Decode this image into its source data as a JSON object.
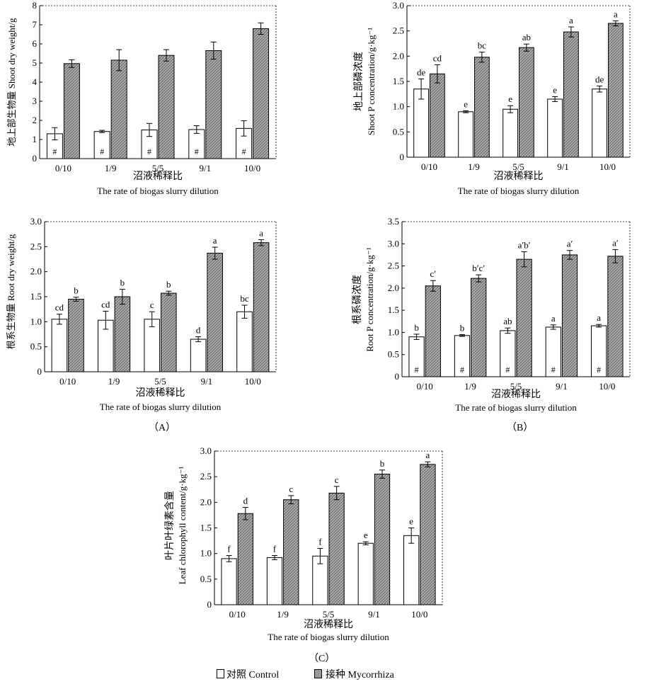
{
  "figure": {
    "panel_labels": [
      "（A）",
      "（B）",
      "（C）"
    ],
    "legend": [
      {
        "label": "对照 Control",
        "color": "#ffffff"
      },
      {
        "label": "接种 Mycorrhiza",
        "color": "#9a9a9a"
      }
    ]
  },
  "chart_data": [
    {
      "type": "bar",
      "panel": "A",
      "ylabel_cn": "地上部生物量 Shoot dry weight/g",
      "ylabel_en": "",
      "xlabel_cn": "沼液稀释比",
      "xlabel_en": "The rate of biogas slurry dilution",
      "categories": [
        "0/10",
        "1/9",
        "5/5",
        "9/1",
        "10/0"
      ],
      "ylim": [
        0,
        8
      ],
      "yticks": [
        "0",
        "1",
        "2",
        "3",
        "4",
        "5",
        "6",
        "7",
        "8"
      ],
      "series": [
        {
          "name": "对照 Control",
          "values": [
            1.3,
            1.42,
            1.5,
            1.52,
            1.58
          ],
          "errors": [
            0.32,
            0.06,
            0.34,
            0.2,
            0.4
          ],
          "labels": [
            "#",
            "#",
            "#",
            "#",
            "#"
          ],
          "label_pos": "inside"
        },
        {
          "name": "接种 Mycorrhiza",
          "values": [
            4.97,
            5.15,
            5.4,
            5.65,
            6.8
          ],
          "errors": [
            0.2,
            0.55,
            0.3,
            0.45,
            0.3
          ],
          "labels": [
            "",
            "",
            "",
            "",
            ""
          ],
          "label_pos": "top"
        }
      ]
    },
    {
      "type": "bar",
      "panel": "B",
      "ylabel_cn": "地上部磷浓度",
      "ylabel_en": "Shoot P concentration/g·kg⁻¹",
      "xlabel_cn": "沼液稀释比",
      "xlabel_en": "The rate of biogas slurry dilution",
      "categories": [
        "0/10",
        "1/9",
        "5/5",
        "9/1",
        "10/0"
      ],
      "ylim": [
        0,
        3.0
      ],
      "yticks": [
        "0",
        "0.5",
        "1.0",
        "1.5",
        "2.0",
        "2.5",
        "3.0"
      ],
      "series": [
        {
          "name": "对照 Control",
          "values": [
            1.35,
            0.9,
            0.95,
            1.15,
            1.35
          ],
          "errors": [
            0.2,
            0.02,
            0.07,
            0.05,
            0.06
          ],
          "labels": [
            "de",
            "e",
            "e",
            "e",
            "de"
          ],
          "label_pos": "top"
        },
        {
          "name": "接种 Mycorrhiza",
          "values": [
            1.65,
            1.98,
            2.17,
            2.48,
            2.65
          ],
          "errors": [
            0.18,
            0.1,
            0.07,
            0.1,
            0.05
          ],
          "labels": [
            "cd",
            "bc",
            "ab",
            "a",
            "a"
          ],
          "label_pos": "top"
        }
      ]
    },
    {
      "type": "bar",
      "panel": "A",
      "ylabel_cn": "根系生物量 Root dry weight/g",
      "ylabel_en": "",
      "xlabel_cn": "沼液稀释比",
      "xlabel_en": "The rate of biogas slurry dilution",
      "categories": [
        "0/10",
        "1/9",
        "5/5",
        "9/1",
        "10/0"
      ],
      "ylim": [
        0,
        3.0
      ],
      "yticks": [
        "0",
        "0.5",
        "1.0",
        "1.5",
        "2.0",
        "2.5",
        "3.0"
      ],
      "series": [
        {
          "name": "对照 Control",
          "values": [
            1.05,
            1.03,
            1.05,
            0.65,
            1.2
          ],
          "errors": [
            0.1,
            0.18,
            0.15,
            0.05,
            0.13
          ],
          "labels": [
            "cd",
            "cd",
            "c",
            "d",
            "bc"
          ],
          "label_pos": "top"
        },
        {
          "name": "接种 Mycorrhiza",
          "values": [
            1.45,
            1.5,
            1.57,
            2.37,
            2.58
          ],
          "errors": [
            0.04,
            0.15,
            0.04,
            0.12,
            0.06
          ],
          "labels": [
            "b",
            "b",
            "b",
            "a",
            "a"
          ],
          "label_pos": "top"
        }
      ]
    },
    {
      "type": "bar",
      "panel": "B",
      "ylabel_cn": "根系磷浓度",
      "ylabel_en": "Root P concentration/g·kg⁻¹",
      "xlabel_cn": "沼液稀释比",
      "xlabel_en": "The rate of biogas slurry dilution",
      "categories": [
        "0/10",
        "1/9",
        "5/5",
        "9/1",
        "10/0"
      ],
      "ylim": [
        0,
        3.5
      ],
      "yticks": [
        "0",
        "0.5",
        "1.0",
        "1.5",
        "2.0",
        "2.5",
        "3.0",
        "3.5"
      ],
      "series": [
        {
          "name": "对照 Control",
          "values": [
            0.9,
            0.93,
            1.04,
            1.12,
            1.15
          ],
          "errors": [
            0.06,
            0.02,
            0.06,
            0.05,
            0.03
          ],
          "labels": [
            "b",
            "b",
            "ab",
            "a",
            "a"
          ],
          "label_pos": "top",
          "inner_labels": [
            "#",
            "#",
            "#",
            "#",
            "#"
          ]
        },
        {
          "name": "接种 Mycorrhiza",
          "values": [
            2.05,
            2.22,
            2.65,
            2.75,
            2.72
          ],
          "errors": [
            0.12,
            0.08,
            0.17,
            0.1,
            0.15
          ],
          "labels": [
            "c′",
            "b′c′",
            "a′b′",
            "a′",
            "a′"
          ],
          "label_pos": "top"
        }
      ]
    },
    {
      "type": "bar",
      "panel": "C",
      "ylabel_cn": "叶片叶绿素含量",
      "ylabel_en": "Leaf chlorophyll content/g·kg⁻¹",
      "xlabel_cn": "沼液稀释比",
      "xlabel_en": "The rate of biogas slurry dilution",
      "categories": [
        "0/10",
        "1/9",
        "5/5",
        "9/1",
        "10/0"
      ],
      "ylim": [
        0,
        3.0
      ],
      "yticks": [
        "0",
        "0.5",
        "1.0",
        "1.5",
        "2.0",
        "2.5",
        "3.0"
      ],
      "series": [
        {
          "name": "对照 Control",
          "values": [
            0.9,
            0.92,
            0.95,
            1.2,
            1.35
          ],
          "errors": [
            0.06,
            0.04,
            0.15,
            0.03,
            0.15
          ],
          "labels": [
            "f",
            "f",
            "f",
            "e",
            "e"
          ],
          "label_pos": "top"
        },
        {
          "name": "接种 Mycorrhiza",
          "values": [
            1.78,
            2.05,
            2.18,
            2.55,
            2.74
          ],
          "errors": [
            0.12,
            0.08,
            0.13,
            0.08,
            0.05
          ],
          "labels": [
            "d",
            "c",
            "c",
            "b",
            "a"
          ],
          "label_pos": "top"
        }
      ]
    }
  ]
}
